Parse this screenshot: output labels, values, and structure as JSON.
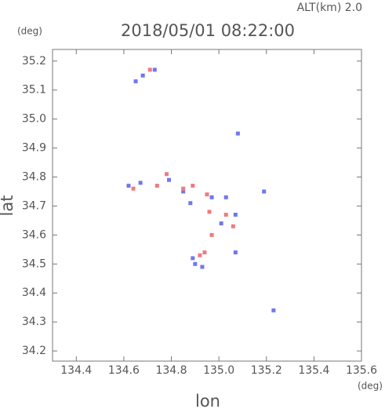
{
  "chart_data": {
    "type": "scatter",
    "title": "2018/05/01 08:22:00",
    "subtitle": "ALT(km) 2.0",
    "y_unit": "(deg)",
    "x_unit": "(deg)",
    "x_label": "lon",
    "y_label": "lat",
    "xlim": [
      134.3,
      135.6
    ],
    "ylim": [
      34.165,
      35.24
    ],
    "xticks": [
      134.4,
      134.6,
      134.8,
      {
        "value": 135,
        "label": "135.0"
      },
      135.2,
      135.4,
      135.6
    ],
    "yticks": [
      34.2,
      34.3,
      34.4,
      34.5,
      34.6,
      34.7,
      34.8,
      34.9,
      {
        "value": 35,
        "label": "35.0"
      },
      35.1,
      35.2
    ],
    "series": [
      {
        "color": "#6f78f0",
        "x": [
          134.65,
          134.73,
          135.08,
          134.62,
          134.67,
          134.79,
          134.85,
          134.88,
          134.97,
          135.03,
          135.19,
          135.01,
          135.07,
          134.89,
          134.93,
          135.23,
          135.07,
          134.9,
          134.68
        ],
        "y": [
          35.13,
          35.17,
          34.95,
          34.77,
          34.78,
          34.79,
          34.75,
          34.71,
          34.73,
          34.73,
          34.75,
          34.64,
          34.67,
          34.52,
          34.49,
          34.34,
          34.54,
          34.5,
          35.15
        ]
      },
      {
        "color": "#f07a80",
        "x": [
          134.64,
          134.74,
          134.78,
          134.85,
          134.95,
          134.96,
          135.03,
          135.06,
          134.97,
          134.92,
          134.94,
          134.71,
          134.89
        ],
        "y": [
          34.76,
          34.77,
          34.81,
          34.76,
          34.74,
          34.68,
          34.67,
          34.63,
          34.6,
          34.53,
          34.54,
          35.17,
          34.77
        ]
      }
    ]
  }
}
